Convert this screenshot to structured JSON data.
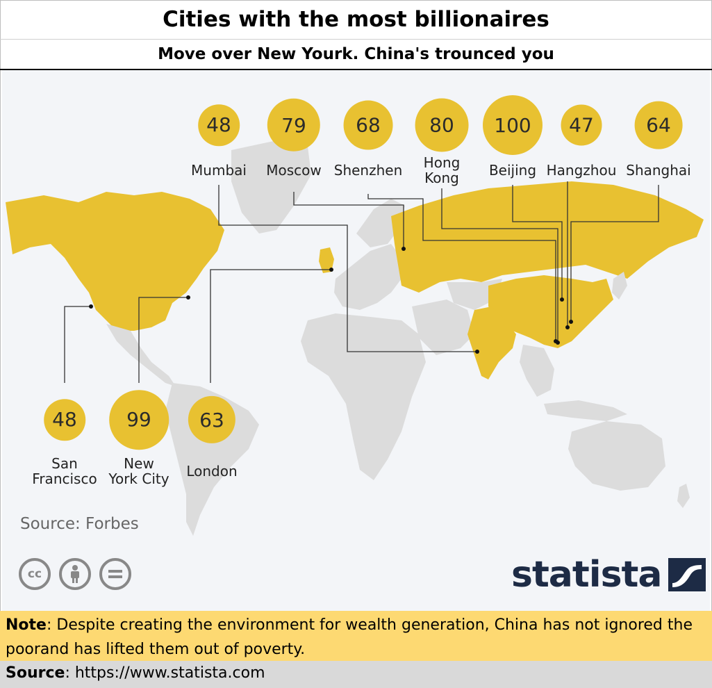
{
  "title": "Cities with the most billionaires",
  "subtitle": "Move over New Yourk.  China's trounced you",
  "map": {
    "source_text": "Source: Forbes",
    "license_icons": [
      {
        "name": "cc-icon",
        "glyph": "cc"
      },
      {
        "name": "attribution-icon",
        "glyph": "὆4"
      },
      {
        "name": "no-derivatives-icon",
        "glyph": "="
      }
    ],
    "logo_text": "statista",
    "colors": {
      "highlight": "#e8c131",
      "land": "#dcdcdc",
      "ocean": "#f3f5f8",
      "logo": "#1d2b45",
      "leader": "#333333"
    }
  },
  "chart_data": {
    "type": "bubble-map",
    "cities": [
      {
        "name": "Mumbai",
        "value": 48
      },
      {
        "name": "Moscow",
        "value": 79
      },
      {
        "name": "Shenzhen",
        "value": 68
      },
      {
        "name": "Hong\nKong",
        "value": 80
      },
      {
        "name": "Beijing",
        "value": 100
      },
      {
        "name": "Hangzhou",
        "value": 47
      },
      {
        "name": "Shanghai",
        "value": 64
      },
      {
        "name": "San\nFrancisco",
        "value": 48
      },
      {
        "name": "New\nYork City",
        "value": 99
      },
      {
        "name": "London",
        "value": 63
      }
    ],
    "highlighted_countries": [
      "United States",
      "Russia",
      "China",
      "India",
      "United Kingdom",
      "Canada"
    ]
  },
  "note": {
    "label": "Note",
    "text": ": Despite creating the environment for wealth generation, China has not ignored the poorand has lifted them out of poverty."
  },
  "source": {
    "label": "Source",
    "text": ": https://www.statista.com"
  }
}
